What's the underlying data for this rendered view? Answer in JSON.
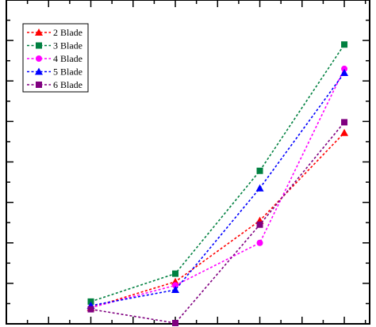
{
  "chart_data": {
    "type": "line",
    "title": "",
    "xlabel": "",
    "ylabel": "",
    "x": [
      1,
      2,
      3,
      4
    ],
    "xlim": [
      0,
      4.3
    ],
    "ylim": [
      0,
      8
    ],
    "grid": false,
    "legend_position": "top-left",
    "series": [
      {
        "name": "2 Blade",
        "color": "#ff0000",
        "marker": "triangle",
        "values": [
          0.4,
          1.04,
          2.55,
          4.72
        ]
      },
      {
        "name": "3 Blade",
        "color": "#008040",
        "marker": "square",
        "values": [
          0.55,
          1.24,
          3.78,
          6.9
        ]
      },
      {
        "name": "4 Blade",
        "color": "#ff00ff",
        "marker": "circle",
        "values": [
          0.4,
          0.95,
          2.0,
          6.3
        ]
      },
      {
        "name": "5 Blade",
        "color": "#0000ff",
        "marker": "triangle",
        "values": [
          0.45,
          0.84,
          3.35,
          6.2
        ]
      },
      {
        "name": "6 Blade",
        "color": "#800080",
        "marker": "square",
        "values": [
          0.36,
          0.02,
          2.45,
          4.98
        ]
      }
    ]
  }
}
